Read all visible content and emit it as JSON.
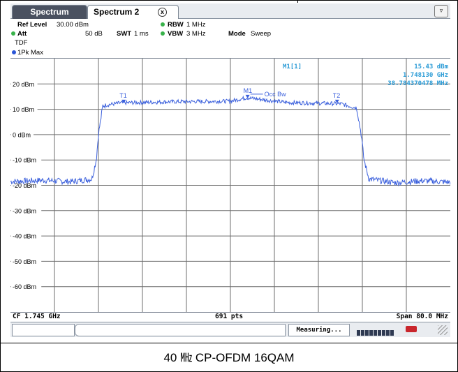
{
  "tabs": {
    "tab1": "Spectrum",
    "tab2": "Spectrum 2",
    "close": "x"
  },
  "settings": {
    "ref_label": "Ref Level",
    "ref_value": "30.00 dBm",
    "att_label": "Att",
    "att_value": "50 dB",
    "swt_label": "SWT",
    "swt_value": "1 ms",
    "rbw_label": "RBW",
    "rbw_value": "1 MHz",
    "vbw_label": "VBW",
    "vbw_value": "3 MHz",
    "mode_label": "Mode",
    "mode_value": "Sweep",
    "tdf": "TDF"
  },
  "trace": {
    "label": "1Pk Max",
    "color": "#3a5fdc"
  },
  "marker": {
    "name": "M1[1]",
    "power": "15.43 dBm",
    "freq": "1.748130 GHz",
    "occ_bw": "38.784370478 MHz",
    "m1_tag": "M1",
    "occ_tag": "Occ Bw",
    "t1": "T1",
    "t2": "T2"
  },
  "footer": {
    "cf": "CF 1.745 GHz",
    "pts": "691 pts",
    "span": "Span 80.0 MHz"
  },
  "status": {
    "measuring": "Measuring..."
  },
  "caption": "40 ㎒ CP-OFDM 16QAM",
  "chart_data": {
    "type": "line",
    "ylabel_ticks": [
      "20 dBm",
      "10 dBm",
      "0 dBm",
      "-10 dBm",
      "-20 dBm",
      "-30 dBm",
      "-40 dBm",
      "-50 dBm",
      "-60 dBm"
    ],
    "ylim": [
      -70,
      30
    ],
    "x_span_mhz": 80,
    "center_freq_ghz": 1.745,
    "series": [
      {
        "x_mhz": [
          -40,
          -34,
          -29,
          -25.2,
          -24.4,
          -24.0,
          -23.2,
          -20,
          -10,
          0,
          3,
          10,
          20,
          23.0,
          23.8,
          24.3,
          25.2,
          30,
          35,
          40
        ],
        "y_dbm": [
          -18.5,
          -18.0,
          -18.6,
          -17.5,
          -10,
          0,
          11.5,
          12.5,
          13.0,
          13.2,
          14.6,
          12.7,
          12.2,
          10.5,
          0,
          -10,
          -17.5,
          -19.0,
          -18.2,
          -18.8
        ]
      }
    ],
    "markers": [
      {
        "name": "M1",
        "x_mhz": 3.13,
        "y_dbm": 15.43
      },
      {
        "name": "T1",
        "x_mhz": -19.4,
        "y_dbm": 13.5
      },
      {
        "name": "T2",
        "x_mhz": 19.4,
        "y_dbm": 13.5
      }
    ]
  }
}
